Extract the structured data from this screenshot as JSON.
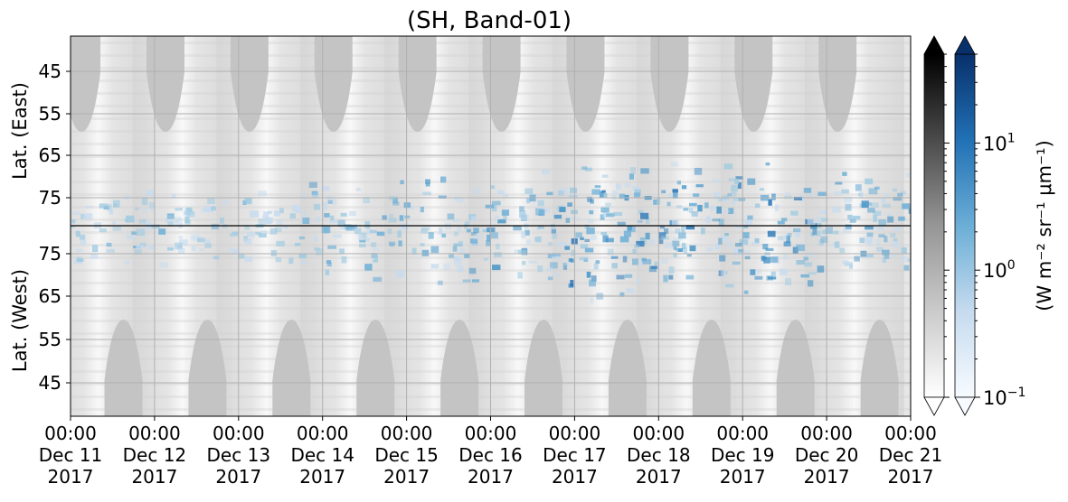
{
  "chart_data": {
    "type": "heatmap",
    "title": "(SH, Band-01)",
    "ylabel_top": "Lat. (East)",
    "ylabel_bottom": "Lat. (West)",
    "colorbar_label": "(W m⁻² sr⁻¹ μm⁻¹)",
    "x_ticks": [
      {
        "time": "00:00",
        "date": "Dec 11",
        "year": "2017"
      },
      {
        "time": "00:00",
        "date": "Dec 12",
        "year": "2017"
      },
      {
        "time": "00:00",
        "date": "Dec 13",
        "year": "2017"
      },
      {
        "time": "00:00",
        "date": "Dec 14",
        "year": "2017"
      },
      {
        "time": "00:00",
        "date": "Dec 15",
        "year": "2017"
      },
      {
        "time": "00:00",
        "date": "Dec 16",
        "year": "2017"
      },
      {
        "time": "00:00",
        "date": "Dec 17",
        "year": "2017"
      },
      {
        "time": "00:00",
        "date": "Dec 18",
        "year": "2017"
      },
      {
        "time": "00:00",
        "date": "Dec 19",
        "year": "2017"
      },
      {
        "time": "00:00",
        "date": "Dec 20",
        "year": "2017"
      },
      {
        "time": "00:00",
        "date": "Dec 21",
        "year": "2017"
      }
    ],
    "y_ticks_east": [
      "45",
      "55",
      "65",
      "75"
    ],
    "y_ticks_west": [
      "75",
      "65",
      "55",
      "45"
    ],
    "colorbar_ticks": [
      {
        "base": "10",
        "exp": "1",
        "value": 10
      },
      {
        "base": "10",
        "exp": "0",
        "value": 1
      },
      {
        "base": "10",
        "exp": "−1",
        "value": 0.1
      }
    ],
    "colorbar_scale": "log",
    "colorbar_range": [
      0.1,
      50
    ],
    "colormaps": {
      "gray": [
        "#ffffff",
        "#000000"
      ],
      "blue": [
        "#f7fbff",
        "#08306b"
      ]
    },
    "grid": true,
    "gap_centers": [
      11.33,
      12.33,
      13.33,
      14.33,
      15.33,
      16.33,
      17.33,
      18.33,
      19.33,
      20.33
    ],
    "equator_line_color": "#000000"
  }
}
